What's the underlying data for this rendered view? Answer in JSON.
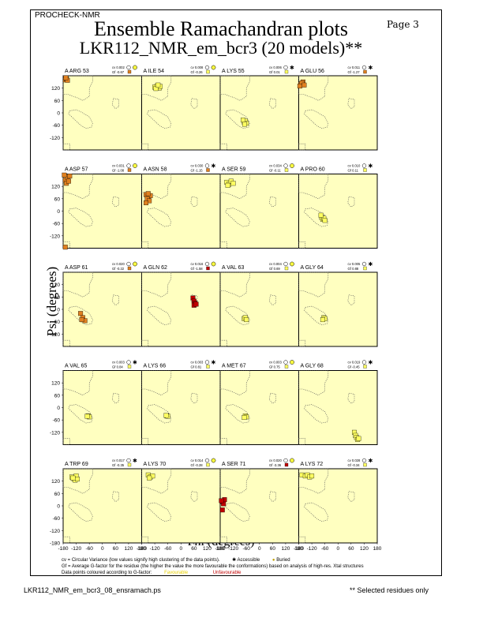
{
  "header": {
    "program": "PROCHECK-NMR",
    "page": "Page  3",
    "title": "Ensemble Ramachandran plots",
    "subtitle": "LKR112_NMR_em_bcr3 (20 models)**"
  },
  "footer": {
    "file": "LKR112_NMR_em_bcr3_08_ensramach.ps",
    "note": "** Selected residues only",
    "cv_text": "cv = Circular Variance (low values signify high clustering of the data points).",
    "accessible": "Accessible",
    "buried": "Buried",
    "gf_text": "Gf = Average G-factor for the residue (the higher the value the more favourable the conformations) based on analysis of high-res. Xtal structures",
    "colour_text": "Data points coloured according to G-factor:",
    "favourable": "Favourable",
    "unfavourable": "Unfavourable"
  },
  "colors": {
    "panel_bg": "#ffffc0",
    "favourable": "#ffff60",
    "mid": "#e08020",
    "unfavourable": "#c00000"
  },
  "chart_data": {
    "type": "scatter",
    "xlabel": "Phi (degrees)",
    "ylabel": "Psi (degrees)",
    "xlim": [
      -180,
      180
    ],
    "ylim": [
      -180,
      180
    ],
    "xticks": [
      "-180",
      "-120",
      "-60",
      "0",
      "60",
      "120",
      "180"
    ],
    "yticks": [
      "120",
      "60",
      "0",
      "-60",
      "-120"
    ],
    "yticks_bottom": "-180",
    "panels": [
      {
        "label": "A ARG 53",
        "cv": "cv 0.002",
        "gf": "Gf -0.67",
        "access": "buried",
        "gfc": "mid",
        "points": [
          [
            -170,
            160
          ],
          [
            -165,
            165
          ],
          [
            -160,
            158
          ],
          [
            -168,
            170
          ]
        ]
      },
      {
        "label": "A ILE 54",
        "cv": "cv 0.008",
        "gf": "Gf -0.26",
        "access": "buried",
        "gfc": "fav",
        "points": [
          [
            -120,
            125
          ],
          [
            -110,
            130
          ],
          [
            -100,
            120
          ],
          [
            -115,
            118
          ],
          [
            -95,
            128
          ],
          [
            -105,
            135
          ]
        ]
      },
      {
        "label": "A LYS 55",
        "cv": "cv 0.006",
        "gf": "Gf 0.01",
        "access": "accessible",
        "gfc": "fav",
        "points": [
          [
            -70,
            -45
          ],
          [
            -65,
            -40
          ],
          [
            -60,
            -50
          ],
          [
            -75,
            -35
          ],
          [
            -68,
            -55
          ]
        ]
      },
      {
        "label": "A GLU 56",
        "cv": "cv 0.011",
        "gf": "Gf -1.27",
        "access": "accessible",
        "gfc": "mid",
        "points": [
          [
            -170,
            140
          ],
          [
            -160,
            150
          ],
          [
            -165,
            145
          ],
          [
            -155,
            135
          ],
          [
            -175,
            130
          ]
        ]
      },
      {
        "label": "A ASP 57",
        "cv": "cv 0.031",
        "gf": "Gf -1.08",
        "access": "buried",
        "gfc": "mid",
        "points": [
          [
            -170,
            150
          ],
          [
            -160,
            165
          ],
          [
            -150,
            170
          ],
          [
            -175,
            175
          ],
          [
            -165,
            135
          ],
          [
            -155,
            145
          ],
          [
            -170,
            -175
          ]
        ]
      },
      {
        "label": "A ASN 58",
        "cv": "cv 0.030",
        "gf": "Gf -1.15",
        "access": "accessible",
        "gfc": "mid",
        "points": [
          [
            -160,
            80
          ],
          [
            -150,
            70
          ],
          [
            -140,
            75
          ],
          [
            -155,
            60
          ],
          [
            -145,
            50
          ],
          [
            -160,
            40
          ],
          [
            -150,
            85
          ]
        ]
      },
      {
        "label": "A SER 59",
        "cv": "cv 0.034",
        "gf": "Gf -0.11",
        "access": "buried",
        "gfc": "fav",
        "points": [
          [
            -150,
            140
          ],
          [
            -140,
            130
          ],
          [
            -130,
            145
          ],
          [
            -120,
            135
          ],
          [
            -145,
            125
          ]
        ]
      },
      {
        "label": "A PRO 60",
        "cv": "cv 0.010",
        "gf": "Gf 0.11",
        "access": "accessible",
        "gfc": "fav",
        "points": [
          [
            -75,
            -30
          ],
          [
            -70,
            -40
          ],
          [
            -65,
            -35
          ],
          [
            -60,
            -45
          ],
          [
            -78,
            -20
          ]
        ]
      },
      {
        "label": "A ASP 61",
        "cv": "cv 0.020",
        "gf": "Gf -0.22",
        "access": "buried",
        "gfc": "mid",
        "points": [
          [
            -100,
            -20
          ],
          [
            -90,
            -40
          ],
          [
            -80,
            -55
          ],
          [
            -95,
            -50
          ]
        ]
      },
      {
        "label": "A GLN 62",
        "cv": "cv 0.016",
        "gf": "Gf -1.58",
        "access": "buried",
        "gfc": "unf",
        "points": [
          [
            55,
            55
          ],
          [
            60,
            40
          ],
          [
            65,
            30
          ],
          [
            60,
            20
          ],
          [
            70,
            25
          ]
        ]
      },
      {
        "label": "A VAL 63",
        "cv": "cv 0.004",
        "gf": "Gf 0.69",
        "access": "buried",
        "gfc": "fav",
        "points": [
          [
            -70,
            -45
          ],
          [
            -65,
            -40
          ],
          [
            -60,
            -50
          ]
        ]
      },
      {
        "label": "A GLY 64",
        "cv": "cv 0.005",
        "gf": "Gf 0.88",
        "access": "accessible",
        "gfc": "fav",
        "points": [
          [
            -65,
            -40
          ],
          [
            -60,
            -45
          ],
          [
            -70,
            -50
          ]
        ]
      },
      {
        "label": "A VAL 65",
        "cv": "cv 0.003",
        "gf": "Gf 0.84",
        "access": "accessible",
        "gfc": "fav",
        "points": [
          [
            -65,
            -40
          ],
          [
            -60,
            -45
          ],
          [
            -70,
            -42
          ]
        ]
      },
      {
        "label": "A LYS 66",
        "cv": "cv 0.003",
        "gf": "Gf 0.81",
        "access": "accessible",
        "gfc": "fav",
        "points": [
          [
            -65,
            -40
          ],
          [
            -60,
            -42
          ],
          [
            -68,
            -38
          ]
        ]
      },
      {
        "label": "A MET 67",
        "cv": "cv 0.003",
        "gf": "Gf 0.75",
        "access": "buried",
        "gfc": "fav",
        "points": [
          [
            -65,
            -40
          ],
          [
            -60,
            -45
          ],
          [
            -70,
            -48
          ]
        ]
      },
      {
        "label": "A GLY 68",
        "cv": "cv 0.019",
        "gf": "Gf -0.45",
        "access": "accessible",
        "gfc": "fav",
        "points": [
          [
            75,
            -120
          ],
          [
            80,
            -135
          ],
          [
            85,
            -145
          ],
          [
            90,
            -155
          ],
          [
            95,
            -150
          ]
        ]
      },
      {
        "label": "A TRP 69",
        "cv": "cv 0.017",
        "gf": "Gf -0.35",
        "access": "accessible",
        "gfc": "fav",
        "points": [
          [
            -140,
            140
          ],
          [
            -130,
            130
          ],
          [
            -120,
            145
          ],
          [
            -125,
            125
          ],
          [
            -135,
            135
          ],
          [
            -115,
            130
          ]
        ]
      },
      {
        "label": "A LYS 70",
        "cv": "cv 0.014",
        "gf": "Gf -0.28",
        "access": "buried",
        "gfc": "fav",
        "points": [
          [
            -150,
            150
          ],
          [
            -140,
            140
          ],
          [
            -130,
            145
          ],
          [
            -145,
            135
          ]
        ]
      },
      {
        "label": "A SER 71",
        "cv": "cv 0.020",
        "gf": "Gf -3.36",
        "access": "buried",
        "gfc": "unf",
        "points": [
          [
            -170,
            20
          ],
          [
            -165,
            10
          ],
          [
            -160,
            30
          ],
          [
            -175,
            25
          ],
          [
            -170,
            -20
          ]
        ]
      },
      {
        "label": "A LYS 72",
        "cv": "cv 0.028",
        "gf": "Gf -0.34",
        "access": "accessible",
        "gfc": "fav",
        "points": [
          [
            -165,
            150
          ],
          [
            -150,
            145
          ],
          [
            -140,
            150
          ],
          [
            -130,
            140
          ],
          [
            -120,
            145
          ]
        ]
      }
    ]
  }
}
